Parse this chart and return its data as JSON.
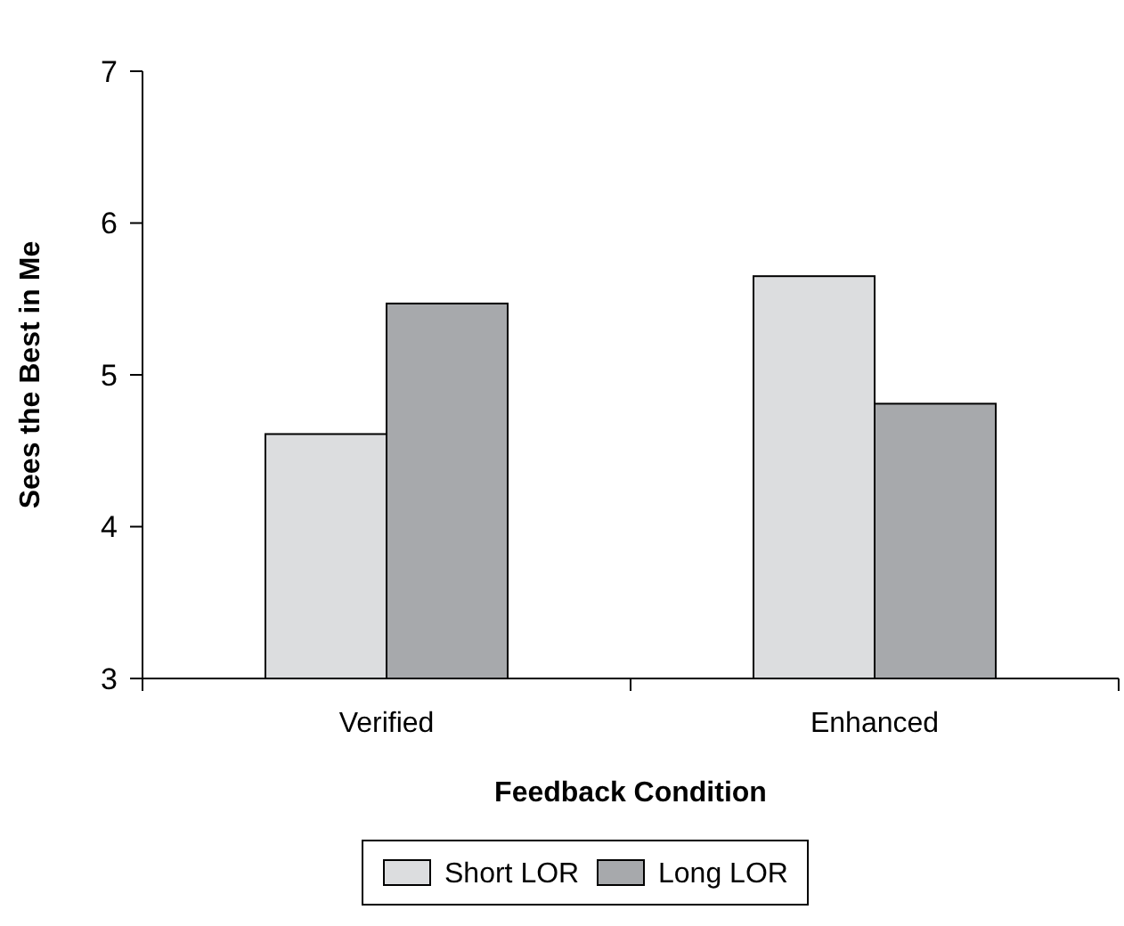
{
  "chart_data": {
    "type": "bar",
    "xlabel": "Feedback Condition",
    "ylabel": "Sees the Best in Me",
    "categories": [
      "Verified",
      "Enhanced"
    ],
    "series": [
      {
        "name": "Short LOR",
        "color": "#dcdddf",
        "values": [
          4.61,
          5.65
        ]
      },
      {
        "name": "Long LOR",
        "color": "#a7a9ac",
        "values": [
          5.47,
          4.81
        ]
      }
    ],
    "ylim": [
      3,
      7
    ],
    "yticks": [
      3,
      4,
      5,
      6,
      7
    ],
    "grid": false,
    "legend": "bottom"
  }
}
